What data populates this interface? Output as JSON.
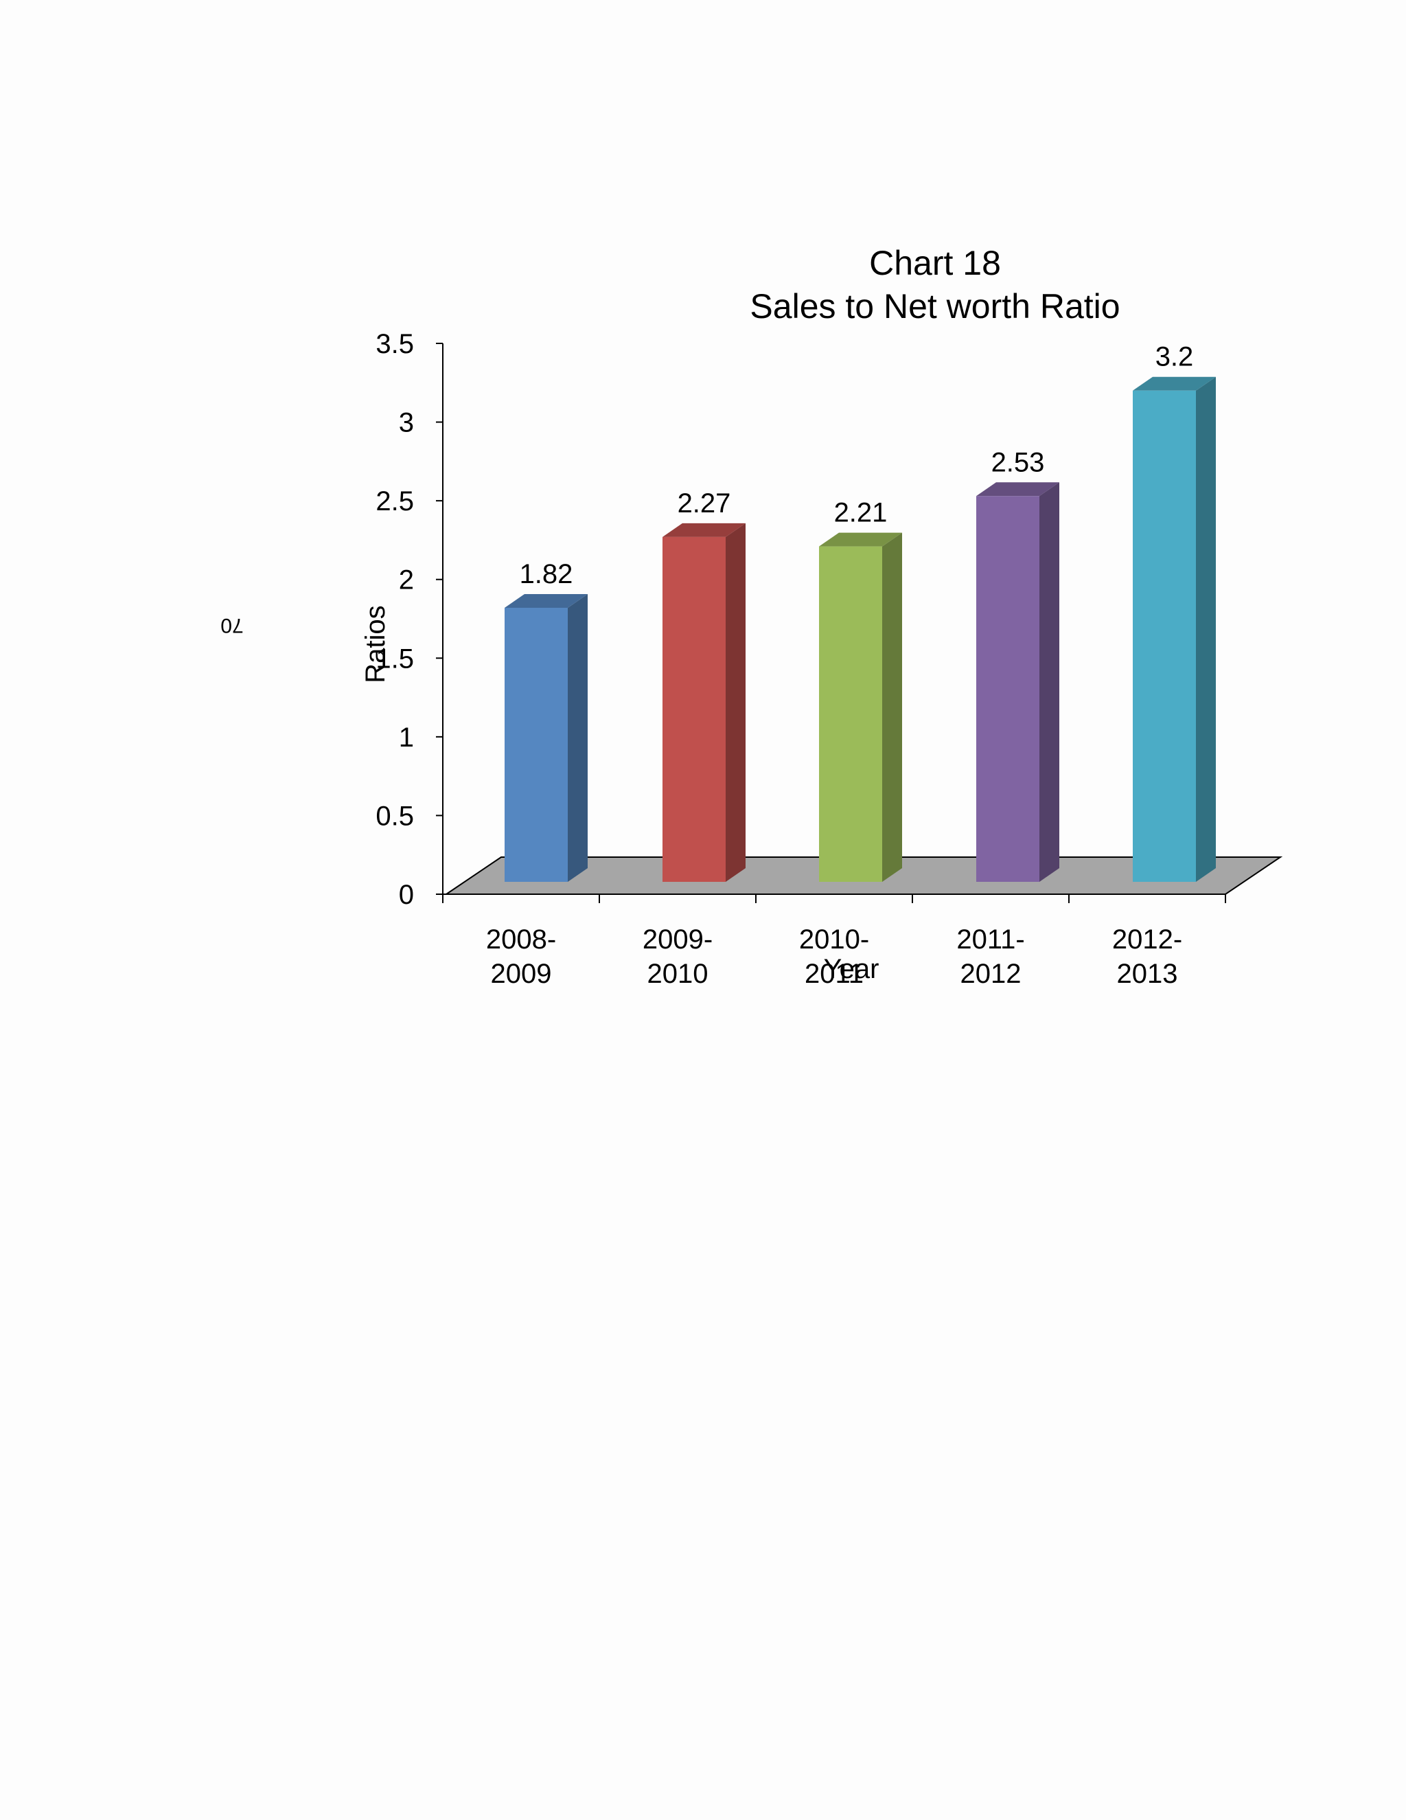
{
  "page_number": "70",
  "chart_data": {
    "type": "bar",
    "title": "Chart 18",
    "subtitle": "Sales to Net worth Ratio",
    "xlabel": "Year",
    "ylabel": "Ratios",
    "categories": [
      [
        "2008-",
        "2009"
      ],
      [
        "2009-",
        "2010"
      ],
      [
        "2010-",
        "2011"
      ],
      [
        "2011-",
        "2012"
      ],
      [
        "2012-",
        "2013"
      ]
    ],
    "values": [
      1.82,
      2.27,
      2.21,
      2.53,
      3.2
    ],
    "data_labels": [
      "1.82",
      "2.27",
      "2.21",
      "2.53",
      "3.2"
    ],
    "yticks": [
      "0",
      "0.5",
      "1",
      "1.5",
      "2",
      "2.5",
      "3",
      "3.5"
    ],
    "ylim": [
      0,
      3.5
    ],
    "bar_colors": [
      "#5587c1",
      "#c0504d",
      "#9bbb59",
      "#8064a2",
      "#4bacc6"
    ],
    "floor_color": "#a6a6a6",
    "style": "3d-column",
    "grid": false,
    "legend": "none"
  }
}
